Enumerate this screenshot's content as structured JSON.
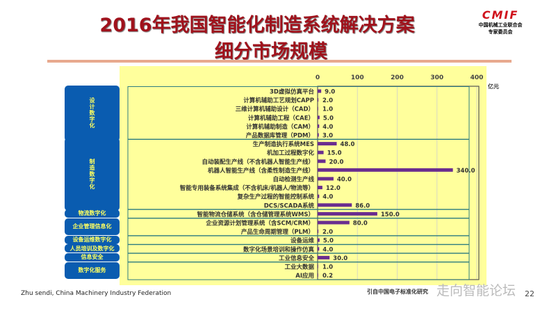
{
  "title_line1": "2016年我国智能化制造系统解决方案",
  "title_line2": "细分市场规模",
  "logo": {
    "mark": "CMIF",
    "sub1": "中国机械工业联合会",
    "sub2": "专家委员会"
  },
  "footer": "Zhu sendi, China Machinery Industry Federation",
  "source": "引自中国电子标准化研究",
  "watermark": "走向智能论坛",
  "page_number": "22",
  "chart_data": {
    "type": "bar",
    "orientation": "horizontal",
    "unit": "亿元",
    "xlim": [
      0,
      400
    ],
    "xticks": [
      0,
      100,
      200,
      300,
      400
    ],
    "grid": true,
    "bar_color": "#6a2d8f",
    "groups": [
      {
        "name": "设计数字化",
        "rows": [
          0,
          5
        ]
      },
      {
        "name": "制造数字化",
        "rows": [
          6,
          13
        ]
      },
      {
        "name": "物流数字化",
        "rows": [
          14,
          14
        ]
      },
      {
        "name": "企业管理信息化",
        "rows": [
          15,
          16
        ]
      },
      {
        "name": "设备运维数字化",
        "rows": [
          17,
          17
        ]
      },
      {
        "name": "人员培训及数字化",
        "rows": [
          18,
          18
        ]
      },
      {
        "name": "信息安全",
        "rows": [
          19,
          19
        ]
      },
      {
        "name": "数字化服务",
        "rows": [
          20,
          21
        ]
      }
    ],
    "categories": [
      "3D虚拟仿真平台",
      "计算机辅助工艺规划CAPP",
      "三维计算机辅助设计（CAD）",
      "计算机辅助工程（CAE）",
      "计算机辅助制造（CAM）",
      "产品数据库管理（PDM）",
      "生产制造执行系统MES",
      "机加工过程数字化",
      "自动装配生产线（不含机器人智能生产线）",
      "机器人智能生产线（含柔性制造生产线）",
      "自动检测生产线",
      "智能专用装备系统集成（不含机床/机器人/物流等）",
      "复杂生产过程的智能控制系统",
      "DCS/SCADA系统",
      "智能物流仓储系统（含仓储管理系统WMS）",
      "企业资源计划管理系统（含SCM/CRM）",
      "产品生命周期管理（PLM）",
      "设备运维",
      "数字化场景培训和操作仿真",
      "工业信息安全",
      "工业大数据",
      "AI应用"
    ],
    "values": [
      9.0,
      2.0,
      1.0,
      5.0,
      4.0,
      3.0,
      48.0,
      15.0,
      20.0,
      340.0,
      40.0,
      12.0,
      4.0,
      86.0,
      150.0,
      80.0,
      2.0,
      5.0,
      4.0,
      30.0,
      1.0,
      0.2
    ],
    "labels": [
      "9.0",
      "2.0",
      "1.0",
      "5.0",
      "4.0",
      "3.0",
      "48.0",
      "15.0",
      "20.0",
      "340.0",
      "40.0",
      "12.0",
      "4.0",
      "86.0",
      "150.0",
      "80.0",
      "2.0",
      "5.0",
      "4.0",
      "30.0",
      "1.0",
      "0.2"
    ]
  }
}
